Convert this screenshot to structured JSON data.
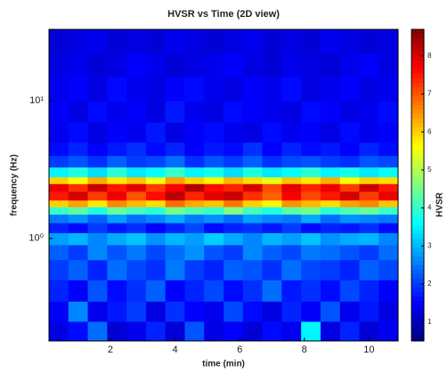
{
  "chart_data": {
    "type": "heatmap",
    "title": "HVSR vs Time (2D view)",
    "x_label": "time (min)",
    "y_label": "frequency (Hz)",
    "colorbar_label": "HVSR",
    "colormap": "jet",
    "y_log": true,
    "x": [
      0.1,
      0.7,
      1.3,
      1.9,
      2.5,
      3.1,
      3.7,
      4.3,
      4.9,
      5.5,
      6.1,
      6.7,
      7.3,
      7.9,
      8.5,
      9.1,
      9.7,
      10.3,
      10.9
    ],
    "y": [
      0.18,
      0.25,
      0.35,
      0.5,
      0.7,
      0.9,
      1.1,
      1.3,
      1.5,
      1.7,
      1.9,
      2.2,
      2.5,
      2.8,
      3.3,
      4,
      5,
      7,
      10,
      15,
      22,
      33
    ],
    "z": [
      [
        1.3,
        1.6,
        2.4,
        1.2,
        1.4,
        1.8,
        1.2,
        2.2,
        1.3,
        1.5,
        1.2,
        1.6,
        1.4,
        3.5,
        1.3,
        1.8,
        1.2,
        1.4
      ],
      [
        1.5,
        2.6,
        1.4,
        1.7,
        2.0,
        1.3,
        1.9,
        1.5,
        1.4,
        2.1,
        1.6,
        1.3,
        1.8,
        1.5,
        2.2,
        1.4,
        1.7,
        1.3
      ],
      [
        1.8,
        1.5,
        2.2,
        1.6,
        1.9,
        2.3,
        1.5,
        1.8,
        2.1,
        1.6,
        1.9,
        2.4,
        1.7,
        1.9,
        1.6,
        2.1,
        1.8,
        1.5
      ],
      [
        2.0,
        2.3,
        1.8,
        2.4,
        2.1,
        1.9,
        2.5,
        2.0,
        1.8,
        2.3,
        2.2,
        1.9,
        2.4,
        2.1,
        2.0,
        1.8,
        2.3,
        2.1
      ],
      [
        2.3,
        2.0,
        2.6,
        2.2,
        2.5,
        2.1,
        2.4,
        2.7,
        2.2,
        2.0,
        2.6,
        2.3,
        2.1,
        2.5,
        2.4,
        2.2,
        2.0,
        2.4
      ],
      [
        2.8,
        3.0,
        2.6,
        2.9,
        3.1,
        2.7,
        3.0,
        2.8,
        3.2,
        2.9,
        2.6,
        3.0,
        2.8,
        3.1,
        2.7,
        2.9,
        3.0,
        2.6
      ],
      [
        1.8,
        1.6,
        2.0,
        1.7,
        1.9,
        1.5,
        1.8,
        2.1,
        1.6,
        1.8,
        1.9,
        1.7,
        2.0,
        1.6,
        1.8,
        1.7,
        1.9,
        1.6
      ],
      [
        2.5,
        2.7,
        2.3,
        2.8,
        2.4,
        2.6,
        2.9,
        2.5,
        2.7,
        2.4,
        2.8,
        2.6,
        2.5,
        2.9,
        2.4,
        2.7,
        2.6,
        2.5
      ],
      [
        4.0,
        4.3,
        3.8,
        4.4,
        4.1,
        3.9,
        4.5,
        4.2,
        4.0,
        4.6,
        4.1,
        3.8,
        4.3,
        4.5,
        3.9,
        4.2,
        4.4,
        4.0
      ],
      [
        6.0,
        6.4,
        5.8,
        6.6,
        6.2,
        5.9,
        6.8,
        6.3,
        6.1,
        6.7,
        6.0,
        5.7,
        6.5,
        6.2,
        5.9,
        6.4,
        6.6,
        6.1
      ],
      [
        7.5,
        8.0,
        7.2,
        7.8,
        7.0,
        7.6,
        8.2,
        7.4,
        7.9,
        8.1,
        7.3,
        6.9,
        7.7,
        7.1,
        7.5,
        8.0,
        7.2,
        7.8
      ],
      [
        7.8,
        7.3,
        8.1,
        7.5,
        7.9,
        7.2,
        7.7,
        8.3,
        7.6,
        7.4,
        8.0,
        7.1,
        7.9,
        7.4,
        7.8,
        7.2,
        8.1,
        7.5
      ],
      [
        6.0,
        5.6,
        6.3,
        5.8,
        6.1,
        5.5,
        6.4,
        6.0,
        5.7,
        6.2,
        5.9,
        5.4,
        6.1,
        5.8,
        6.3,
        5.6,
        6.0,
        5.9
      ],
      [
        3.5,
        3.8,
        3.3,
        3.9,
        3.4,
        3.6,
        4.0,
        3.5,
        3.7,
        3.3,
        3.8,
        3.4,
        3.6,
        3.9,
        3.5,
        3.7,
        3.4,
        3.6
      ],
      [
        2.0,
        2.2,
        1.9,
        2.3,
        2.0,
        2.1,
        2.4,
        1.9,
        2.2,
        2.0,
        2.3,
        1.9,
        2.1,
        2.2,
        2.0,
        1.9,
        2.2,
        2.1
      ],
      [
        1.6,
        1.8,
        1.5,
        1.7,
        1.9,
        1.6,
        1.8,
        1.5,
        1.7,
        1.6,
        1.9,
        1.5,
        1.8,
        1.6,
        1.7,
        1.5,
        1.8,
        1.6
      ],
      [
        1.4,
        1.6,
        1.3,
        1.5,
        1.4,
        1.7,
        1.3,
        1.5,
        1.6,
        1.4,
        1.3,
        1.6,
        1.4,
        1.5,
        1.3,
        1.6,
        1.4,
        1.5
      ],
      [
        1.5,
        1.3,
        1.6,
        1.4,
        1.5,
        1.3,
        1.7,
        1.4,
        1.3,
        1.6,
        1.5,
        1.4,
        1.3,
        1.6,
        1.5,
        1.3,
        1.4,
        1.6
      ],
      [
        1.4,
        1.5,
        1.3,
        1.6,
        1.4,
        1.3,
        1.5,
        1.6,
        1.4,
        1.3,
        1.5,
        1.4,
        1.6,
        1.3,
        1.4,
        1.5,
        1.3,
        1.4
      ],
      [
        1.3,
        1.4,
        1.2,
        1.3,
        1.5,
        1.4,
        1.2,
        1.3,
        1.4,
        1.5,
        1.3,
        1.2,
        1.4,
        1.3,
        1.2,
        1.4,
        1.5,
        1.3
      ],
      [
        1.2,
        1.3,
        1.4,
        1.2,
        1.3,
        1.2,
        1.4,
        1.3,
        1.2,
        1.3,
        1.4,
        1.2,
        1.3,
        1.2,
        1.4,
        1.3,
        1.2,
        1.3
      ]
    ],
    "xlim": [
      0.1,
      10.9
    ],
    "xticks": [
      2,
      4,
      6,
      8,
      10
    ],
    "ylim": [
      0.18,
      33
    ],
    "yticks": [
      {
        "value": 1,
        "label": "10⁰"
      },
      {
        "value": 10,
        "label": "10¹"
      }
    ],
    "clim": [
      0.5,
      8.7
    ],
    "cticks": [
      1,
      2,
      3,
      4,
      5,
      6,
      7,
      8
    ]
  }
}
